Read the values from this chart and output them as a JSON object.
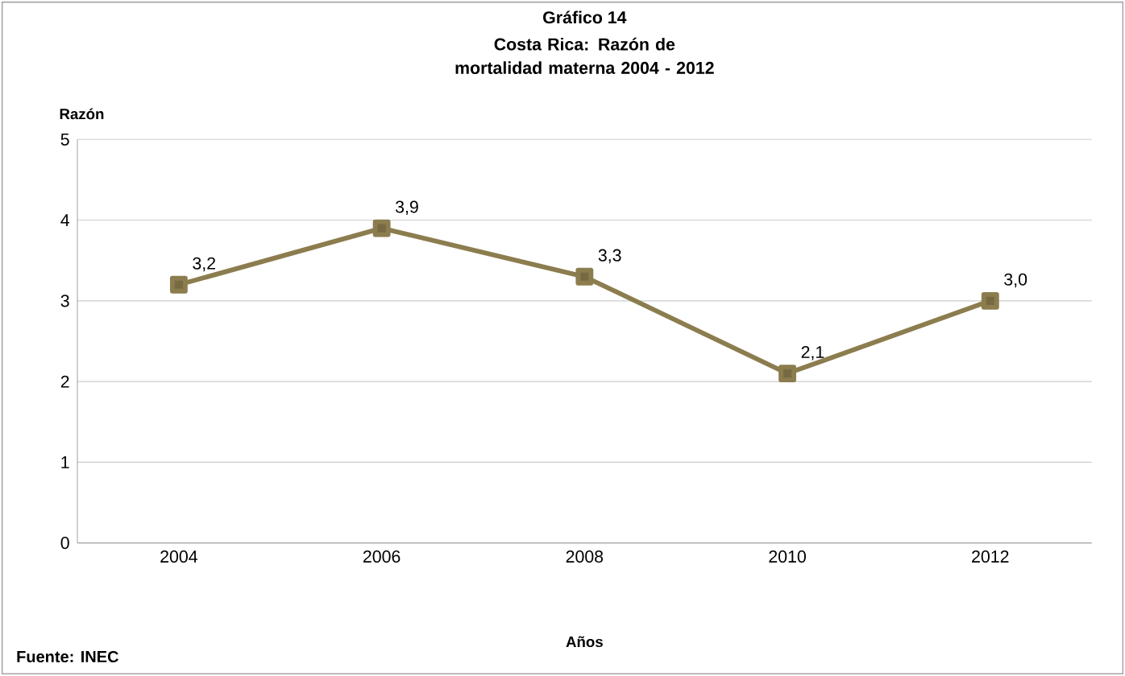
{
  "chart_data": {
    "type": "line",
    "title": "Gráfico 14",
    "subtitle": "Costa Rica: Razón de mortalidad materna 2004 - 2012",
    "xlabel": "Años",
    "ylabel": "Razón",
    "categories": [
      "2004",
      "2006",
      "2008",
      "2010",
      "2012"
    ],
    "values": [
      3.2,
      3.9,
      3.3,
      2.1,
      3.0
    ],
    "value_labels": [
      "3,2",
      "3,9",
      "3,3",
      "2,1",
      "3,0"
    ],
    "color": "#8c7d4f",
    "marker": "square",
    "line_style": "solid",
    "ylim": [
      0,
      5
    ],
    "yticks": [
      0,
      1,
      2,
      3,
      4,
      5
    ],
    "grid": "y",
    "annotations": [
      "Fuente: INEC"
    ]
  }
}
